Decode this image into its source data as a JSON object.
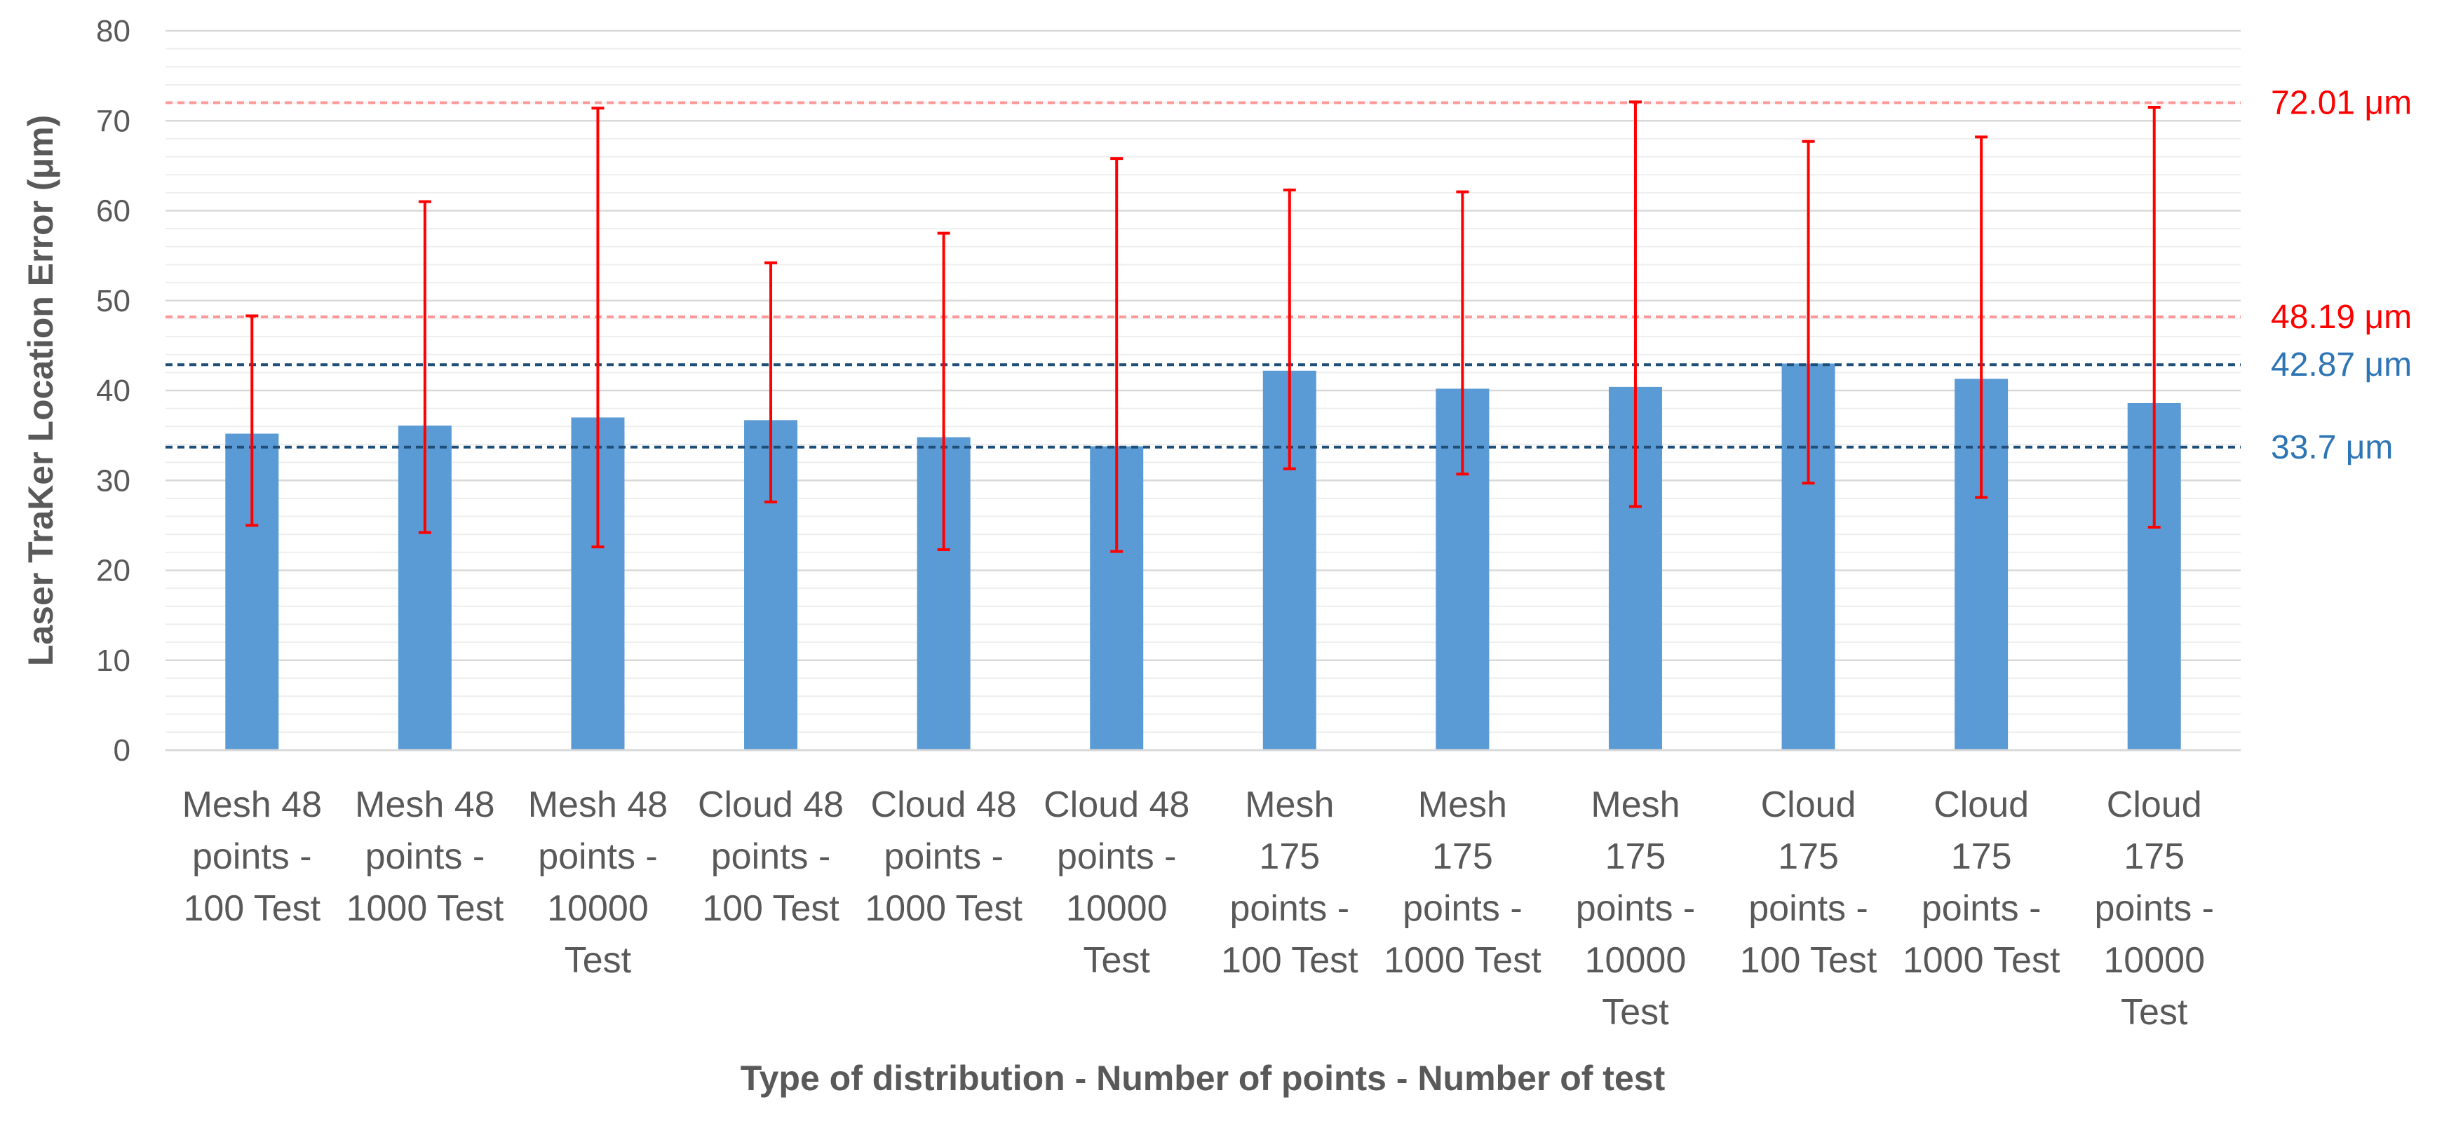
{
  "chart_data": {
    "type": "bar",
    "title": "",
    "xlabel": "Type of distribution - Number of points - Number of test",
    "ylabel": "Laser TraKer Location Error  (μm)",
    "ylim": [
      0,
      80
    ],
    "yticks": [
      0,
      10,
      20,
      30,
      40,
      50,
      60,
      70,
      80
    ],
    "minor_gridlines_step": 2,
    "categories": [
      [
        "Mesh 48",
        "points -",
        "100 Test"
      ],
      [
        "Mesh 48",
        "points -",
        "1000 Test"
      ],
      [
        "Mesh 48",
        "points -",
        "10000",
        "Test"
      ],
      [
        "Cloud 48",
        "points -",
        "100 Test"
      ],
      [
        "Cloud 48",
        "points -",
        "1000 Test"
      ],
      [
        "Cloud 48",
        "points -",
        "10000",
        "Test"
      ],
      [
        "Mesh",
        "175",
        "points -",
        "100 Test"
      ],
      [
        "Mesh",
        "175",
        "points -",
        "1000 Test"
      ],
      [
        "Mesh",
        "175",
        "points -",
        "10000",
        "Test"
      ],
      [
        "Cloud",
        "175",
        "points -",
        "100 Test"
      ],
      [
        "Cloud",
        "175",
        "points -",
        "1000 Test"
      ],
      [
        "Cloud",
        "175",
        "points -",
        "10000",
        "Test"
      ]
    ],
    "series": [
      {
        "name": "Location error",
        "color": "#5B9BD5",
        "values": [
          35.2,
          36.1,
          37.0,
          36.7,
          34.8,
          33.8,
          42.2,
          40.2,
          40.4,
          43.0,
          41.3,
          38.6
        ],
        "error_low": [
          25.0,
          24.2,
          22.6,
          27.6,
          22.3,
          22.1,
          31.3,
          30.7,
          27.1,
          29.7,
          28.1,
          24.8
        ],
        "error_high": [
          48.3,
          61.0,
          71.4,
          54.2,
          57.5,
          65.8,
          62.3,
          62.1,
          72.1,
          67.7,
          68.2,
          71.5
        ],
        "error_color": "#FF0000"
      }
    ],
    "reference_lines": [
      {
        "value": 72.01,
        "label": "72.01 μm",
        "color": "#FF9999",
        "text_color": "#FF0000"
      },
      {
        "value": 48.19,
        "label": "48.19 μm",
        "color": "#FF9999",
        "text_color": "#FF0000"
      },
      {
        "value": 42.87,
        "label": "42.87 μm",
        "color": "#1F4E79",
        "text_color": "#2E75B6"
      },
      {
        "value": 33.7,
        "label": "33.7 μm",
        "color": "#1F4E79",
        "text_color": "#2E75B6"
      }
    ],
    "grid": true,
    "legend": "none"
  }
}
